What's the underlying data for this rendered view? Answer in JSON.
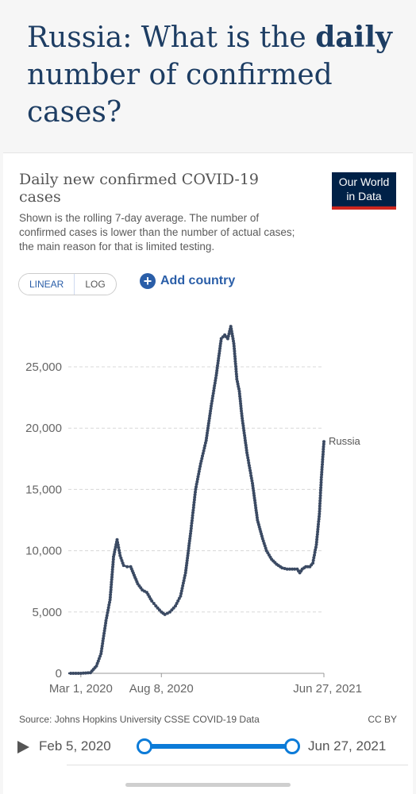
{
  "page": {
    "title_prefix": "Russia: What is the ",
    "title_bold": "daily",
    "title_suffix": " number of confirmed cases?"
  },
  "chart_card": {
    "title": "Daily new confirmed COVID-19 cases",
    "subtitle": "Shown is the rolling 7-day average. The number of confirmed cases is lower than the number of actual cases; the main reason for that is limited testing.",
    "logo_line1": "Our World",
    "logo_line2": "in Data",
    "toggle_linear": "LINEAR",
    "toggle_log": "LOG",
    "add_country": "Add country",
    "source": "Source: Johns Hopkins University CSSE COVID-19 Data",
    "license": "CC BY"
  },
  "timeline": {
    "start": "Feb 5, 2020",
    "end": "Jun 27, 2021"
  },
  "colors": {
    "line": "#3b4a63",
    "accent": "#2a5ea8",
    "slider": "#0c7bd8",
    "logo_bg": "#002147",
    "logo_bar": "#ce261e"
  },
  "chart_data": {
    "type": "line",
    "title": "Daily new confirmed COVID-19 cases",
    "subtitle": "Shown is the rolling 7-day average. The number of confirmed cases is lower than the number of actual cases; the main reason for that is limited testing.",
    "x_ticks": [
      "Mar 1, 2020",
      "Aug 8, 2020",
      "Jun 27, 2021"
    ],
    "y_ticks": [
      "0",
      "5,000",
      "10,000",
      "15,000",
      "20,000",
      "25,000"
    ],
    "ylim": [
      0,
      28500
    ],
    "xlim": [
      "2020-02-05",
      "2021-06-27"
    ],
    "grid": "horizontal",
    "legend": "label at line end",
    "series": [
      {
        "name": "Russia",
        "points": [
          [
            "2020-02-05",
            0
          ],
          [
            "2020-03-01",
            0
          ],
          [
            "2020-03-20",
            50
          ],
          [
            "2020-04-01",
            600
          ],
          [
            "2020-04-10",
            1600
          ],
          [
            "2020-04-20",
            4300
          ],
          [
            "2020-04-28",
            6000
          ],
          [
            "2020-05-05",
            9500
          ],
          [
            "2020-05-12",
            10900
          ],
          [
            "2020-05-18",
            9600
          ],
          [
            "2020-05-25",
            8800
          ],
          [
            "2020-06-01",
            8700
          ],
          [
            "2020-06-08",
            8700
          ],
          [
            "2020-06-15",
            8000
          ],
          [
            "2020-06-22",
            7300
          ],
          [
            "2020-07-01",
            6800
          ],
          [
            "2020-07-10",
            6600
          ],
          [
            "2020-07-20",
            5900
          ],
          [
            "2020-07-28",
            5500
          ],
          [
            "2020-08-08",
            5000
          ],
          [
            "2020-08-15",
            4800
          ],
          [
            "2020-08-25",
            5000
          ],
          [
            "2020-09-05",
            5500
          ],
          [
            "2020-09-15",
            6300
          ],
          [
            "2020-09-25",
            8200
          ],
          [
            "2020-10-05",
            11400
          ],
          [
            "2020-10-15",
            15000
          ],
          [
            "2020-10-25",
            17100
          ],
          [
            "2020-11-05",
            19000
          ],
          [
            "2020-11-15",
            21800
          ],
          [
            "2020-11-25",
            24300
          ],
          [
            "2020-12-05",
            27300
          ],
          [
            "2020-12-12",
            27600
          ],
          [
            "2020-12-18",
            27300
          ],
          [
            "2020-12-24",
            28300
          ],
          [
            "2020-12-30",
            26900
          ],
          [
            "2021-01-05",
            24000
          ],
          [
            "2021-01-10",
            23000
          ],
          [
            "2021-01-15",
            21000
          ],
          [
            "2021-01-25",
            18000
          ],
          [
            "2021-02-05",
            15500
          ],
          [
            "2021-02-15",
            12500
          ],
          [
            "2021-02-25",
            11000
          ],
          [
            "2021-03-05",
            10000
          ],
          [
            "2021-03-15",
            9300
          ],
          [
            "2021-03-25",
            8900
          ],
          [
            "2021-04-05",
            8600
          ],
          [
            "2021-04-15",
            8500
          ],
          [
            "2021-04-25",
            8500
          ],
          [
            "2021-05-05",
            8500
          ],
          [
            "2021-05-10",
            8200
          ],
          [
            "2021-05-15",
            8500
          ],
          [
            "2021-05-22",
            8700
          ],
          [
            "2021-05-30",
            8700
          ],
          [
            "2021-06-05",
            9000
          ],
          [
            "2021-06-12",
            10500
          ],
          [
            "2021-06-18",
            13000
          ],
          [
            "2021-06-22",
            16000
          ],
          [
            "2021-06-27",
            18900
          ]
        ]
      }
    ]
  }
}
